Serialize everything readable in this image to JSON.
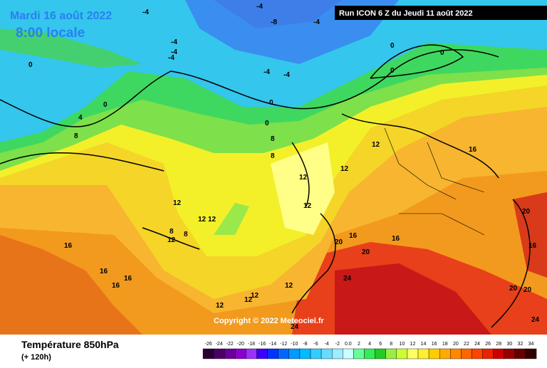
{
  "header": {
    "date": "Mardi 16 août 2022",
    "time": "8:00 locale",
    "run": "Run ICON 6 Z du Jeudi 11 août 2022"
  },
  "footer": {
    "title": "Température 850hPa",
    "subtitle": "(+ 120h)"
  },
  "copyright": "Copyright © 2022 Meteociel.fr",
  "scale": {
    "labels": [
      "-26",
      "-24",
      "-22",
      "-20",
      "-18",
      "-16",
      "-14",
      "-12",
      "-10",
      "-8",
      "-6",
      "-4",
      "-2",
      "0.0",
      "2",
      "4",
      "6",
      "8",
      "10",
      "12",
      "14",
      "16",
      "18",
      "20",
      "22",
      "24",
      "26",
      "28",
      "30",
      "32",
      "34"
    ],
    "colors": [
      "#2a0033",
      "#4b0066",
      "#6a0099",
      "#8a00cc",
      "#9b30ff",
      "#3a00ff",
      "#0033ff",
      "#0066ff",
      "#0099ff",
      "#00bbff",
      "#33ccff",
      "#66ddff",
      "#99eeff",
      "#ccffff",
      "#66ff99",
      "#33ee55",
      "#22cc22",
      "#99ee44",
      "#ccff33",
      "#ffff66",
      "#ffee33",
      "#ffcc00",
      "#ffaa00",
      "#ff8800",
      "#ff6600",
      "#ff4400",
      "#ee2200",
      "#cc0000",
      "#990000",
      "#660000",
      "#330000"
    ]
  },
  "map_labels": [
    "-4",
    "-4",
    "-8",
    "-4",
    "-4",
    "-4",
    "-4",
    "-4",
    "-4",
    "0",
    "0",
    "0",
    "0",
    "0",
    "0",
    "0",
    "4",
    "8",
    "8",
    "8",
    "12",
    "12",
    "12",
    "12",
    "12",
    "12",
    "12",
    "12",
    "12",
    "8",
    "8",
    "16",
    "16",
    "16",
    "16",
    "16",
    "16",
    "16",
    "20",
    "20",
    "20",
    "20",
    "20",
    "24",
    "24",
    "24",
    "16",
    "12",
    "12",
    "12"
  ]
}
